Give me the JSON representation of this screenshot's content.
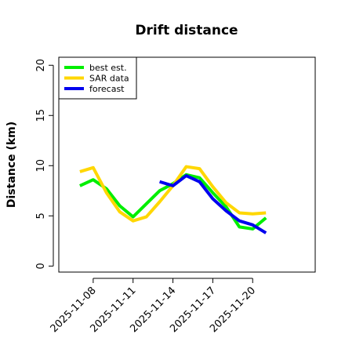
{
  "chart_data": {
    "type": "line",
    "title": "Drift distance",
    "ylabel": "Distance (km)",
    "x": [
      "2025-11-07",
      "2025-11-08",
      "2025-11-09",
      "2025-11-10",
      "2025-11-11",
      "2025-11-12",
      "2025-11-13",
      "2025-11-14",
      "2025-11-15",
      "2025-11-16",
      "2025-11-17",
      "2025-11-18",
      "2025-11-19",
      "2025-11-20",
      "2025-11-21"
    ],
    "series": [
      {
        "name": "best est.",
        "color": "#00ee00",
        "values": [
          8.0,
          8.6,
          7.7,
          6.0,
          4.9,
          6.2,
          7.5,
          8.2,
          9.1,
          8.8,
          7.3,
          5.9,
          3.9,
          3.7,
          4.8
        ]
      },
      {
        "name": "SAR data",
        "color": "#ffd700",
        "values": [
          9.4,
          9.8,
          7.3,
          5.4,
          4.5,
          4.9,
          6.4,
          8.0,
          9.9,
          9.7,
          7.9,
          6.3,
          5.3,
          5.2,
          5.3
        ]
      },
      {
        "name": "forecast",
        "color": "#0000ee",
        "values": [
          null,
          null,
          null,
          null,
          null,
          null,
          8.4,
          8.0,
          9.0,
          8.4,
          6.7,
          5.5,
          4.5,
          4.1,
          3.3
        ]
      }
    ],
    "xlim": [
      "2025-11-05",
      "2025-11-25"
    ],
    "xticks": [
      "2025-11-08",
      "2025-11-11",
      "2025-11-14",
      "2025-11-17",
      "2025-11-20"
    ],
    "ylim": [
      -0.6,
      20.8
    ],
    "yticks": [
      0,
      5,
      10,
      15,
      20
    ],
    "legend": "top-left"
  }
}
